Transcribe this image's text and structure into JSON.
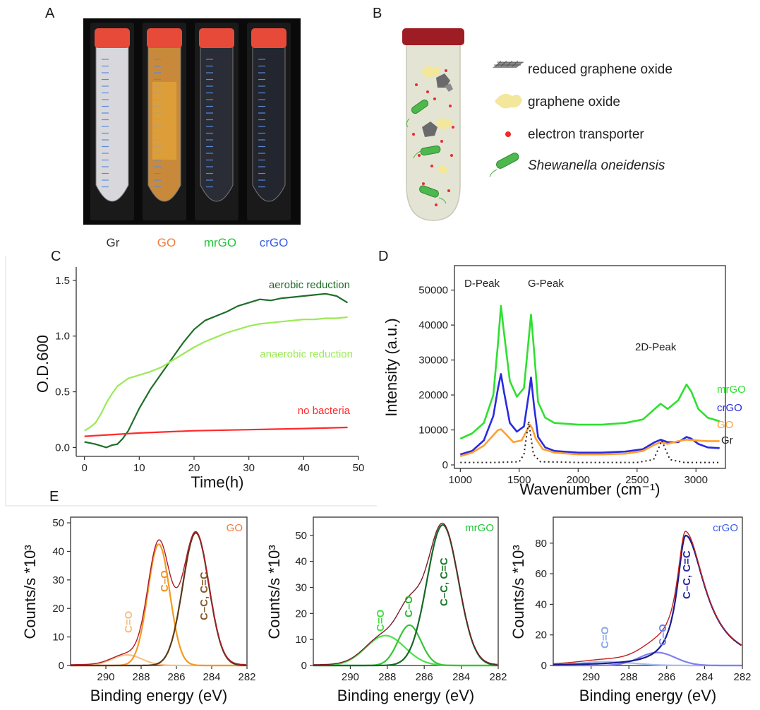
{
  "panels": {
    "A": {
      "label": "A",
      "tubes": [
        {
          "label": "Gr",
          "color": "#333333",
          "liquid": "#d8d8dc"
        },
        {
          "label": "GO",
          "color": "#f07b3c",
          "liquid": "#c88a3a"
        },
        {
          "label": "mrGO",
          "color": "#22c33a",
          "liquid": "#2a2d36"
        },
        {
          "label": "crGO",
          "color": "#3b5fe0",
          "liquid": "#23262e"
        }
      ]
    },
    "B": {
      "label": "B",
      "legend": [
        {
          "icon": "reduced-graphene-oxide-icon",
          "text": "reduced graphene oxide"
        },
        {
          "icon": "graphene-oxide-icon",
          "text": "graphene oxide"
        },
        {
          "icon": "electron-transporter-icon",
          "text": "electron transporter"
        },
        {
          "icon": "shewanella-icon",
          "text": "Shewanella oneidensis"
        }
      ]
    },
    "C": {
      "label": "C"
    },
    "D": {
      "label": "D"
    },
    "E": {
      "label": "E"
    }
  },
  "chart_data": [
    {
      "id": "C",
      "type": "line",
      "xlabel": "Time(h)",
      "ylabel": "O.D.600",
      "xlim": [
        0,
        50
      ],
      "ylim": [
        0,
        1.5
      ],
      "xticks": [
        0,
        10,
        20,
        30,
        40,
        50
      ],
      "yticks": [
        0.0,
        0.5,
        1.0,
        1.5
      ],
      "ytick_labels": [
        "0.0",
        "0.5",
        "1.0",
        "1.5"
      ],
      "series": [
        {
          "name": "aerobic reduction",
          "color": "#1f6e2a",
          "x": [
            0,
            2,
            4,
            5,
            6,
            7,
            8,
            10,
            12,
            14,
            16,
            18,
            20,
            22,
            24,
            26,
            28,
            30,
            32,
            34,
            36,
            38,
            40,
            42,
            44,
            46,
            48
          ],
          "y": [
            0.05,
            0.03,
            0.0,
            0.02,
            0.03,
            0.08,
            0.15,
            0.35,
            0.52,
            0.66,
            0.8,
            0.94,
            1.06,
            1.14,
            1.18,
            1.22,
            1.27,
            1.3,
            1.33,
            1.32,
            1.34,
            1.35,
            1.36,
            1.37,
            1.38,
            1.36,
            1.3
          ]
        },
        {
          "name": "anaerobic reduction",
          "color": "#9bea57",
          "x": [
            0,
            1,
            2,
            3,
            4,
            5,
            6,
            8,
            10,
            12,
            14,
            16,
            18,
            20,
            22,
            24,
            26,
            28,
            30,
            32,
            34,
            36,
            38,
            40,
            42,
            44,
            46,
            48
          ],
          "y": [
            0.15,
            0.18,
            0.22,
            0.3,
            0.4,
            0.48,
            0.55,
            0.62,
            0.65,
            0.68,
            0.72,
            0.78,
            0.84,
            0.9,
            0.95,
            0.99,
            1.03,
            1.06,
            1.09,
            1.11,
            1.12,
            1.13,
            1.14,
            1.15,
            1.15,
            1.16,
            1.16,
            1.17
          ]
        },
        {
          "name": "no bacteria",
          "color": "#ff2a2a",
          "x": [
            0,
            10,
            20,
            30,
            40,
            48
          ],
          "y": [
            0.1,
            0.13,
            0.15,
            0.16,
            0.17,
            0.18
          ]
        }
      ]
    },
    {
      "id": "D",
      "type": "line",
      "xlabel": "Wavenumber (cm⁻¹)",
      "ylabel": "Intensity (a.u.)",
      "xlim": [
        950,
        3250
      ],
      "ylim": [
        -1000,
        57000
      ],
      "xticks": [
        1000,
        1500,
        2000,
        2500,
        3000
      ],
      "yticks": [
        0,
        10000,
        20000,
        30000,
        40000,
        50000
      ],
      "annotations": [
        "D-Peak",
        "G-Peak",
        "2D-Peak"
      ],
      "series": [
        {
          "name": "mrGO",
          "color": "#2fe02f",
          "x": [
            1000,
            1100,
            1200,
            1280,
            1320,
            1345,
            1370,
            1420,
            1480,
            1540,
            1580,
            1600,
            1625,
            1660,
            1720,
            1800,
            2000,
            2200,
            2400,
            2550,
            2650,
            2700,
            2760,
            2850,
            2920,
            2960,
            3020,
            3100,
            3200
          ],
          "y": [
            7500,
            9000,
            12000,
            20000,
            35000,
            45500,
            38000,
            24000,
            19500,
            22000,
            36000,
            43000,
            33000,
            18000,
            13500,
            12000,
            11500,
            11500,
            12000,
            13000,
            16000,
            17500,
            16000,
            18500,
            23000,
            21000,
            16000,
            13500,
            12500
          ]
        },
        {
          "name": "crGO",
          "color": "#2a2adf",
          "x": [
            1000,
            1100,
            1200,
            1280,
            1320,
            1345,
            1370,
            1420,
            1480,
            1540,
            1580,
            1600,
            1625,
            1660,
            1720,
            1800,
            2000,
            2200,
            2400,
            2550,
            2650,
            2700,
            2760,
            2850,
            2920,
            2960,
            3020,
            3100,
            3200
          ],
          "y": [
            3000,
            4000,
            7000,
            14000,
            22000,
            26000,
            21000,
            12000,
            9500,
            11000,
            20000,
            25000,
            17000,
            8000,
            5000,
            4000,
            3500,
            3500,
            3800,
            4500,
            6500,
            7200,
            6500,
            6500,
            8000,
            7500,
            6000,
            5000,
            4800
          ]
        },
        {
          "name": "GO",
          "color": "#ffa030",
          "x": [
            1000,
            1100,
            1200,
            1280,
            1320,
            1345,
            1380,
            1450,
            1520,
            1560,
            1590,
            1610,
            1640,
            1700,
            1800,
            2000,
            2200,
            2400,
            2550,
            2650,
            2700,
            2760,
            2850,
            2920,
            3000,
            3100,
            3200
          ],
          "y": [
            2500,
            3500,
            5500,
            8500,
            10000,
            10200,
            9000,
            6500,
            7000,
            9500,
            11500,
            10500,
            7500,
            4500,
            3500,
            3000,
            3000,
            3200,
            4000,
            5800,
            6500,
            6000,
            6800,
            7200,
            7000,
            6800,
            6800
          ]
        },
        {
          "name": "Gr",
          "color": "#222222",
          "dashed": true,
          "x": [
            1000,
            1300,
            1500,
            1540,
            1565,
            1580,
            1595,
            1620,
            1680,
            2000,
            2500,
            2640,
            2680,
            2710,
            2740,
            2780,
            2900,
            3200
          ],
          "y": [
            700,
            700,
            900,
            3000,
            9000,
            12500,
            9000,
            3000,
            900,
            700,
            700,
            1500,
            4500,
            7000,
            4500,
            1500,
            700,
            700
          ]
        }
      ]
    },
    {
      "id": "E1",
      "type": "line",
      "xlabel": "Binding energy (eV)",
      "ylabel": "Counts/s *10³",
      "xlim": [
        292,
        282
      ],
      "ylim": [
        0,
        52
      ],
      "xticks": [
        290,
        288,
        286,
        284,
        282
      ],
      "yticks": [
        0,
        10,
        20,
        30,
        40,
        50
      ],
      "sample": "GO",
      "sample_color": "#f07b3c",
      "peak_labels": [
        {
          "text": "C=O",
          "color": "#f3c086"
        },
        {
          "text": "C–O",
          "color": "#f2941f"
        },
        {
          "text": "C–C, C=C",
          "color": "#8a5a2a"
        }
      ],
      "series": [
        {
          "name": "C=O",
          "color": "#f6c38a",
          "gauss": [
            288.8,
            3.7,
            0.85
          ]
        },
        {
          "name": "C–O",
          "color": "#f39a24",
          "gauss": [
            287.0,
            42.5,
            0.62
          ]
        },
        {
          "name": "C–C, C=C",
          "color": "#5a3a18",
          "gauss": [
            284.9,
            46.5,
            0.74
          ]
        },
        {
          "name": "envelope",
          "color": "#b01a2a",
          "sum": true
        }
      ]
    },
    {
      "id": "E2",
      "type": "line",
      "xlabel": "Binding energy (eV)",
      "ylabel": "Counts/s *10³",
      "xlim": [
        292,
        282
      ],
      "ylim": [
        0,
        57
      ],
      "xticks": [
        290,
        288,
        286,
        284,
        282
      ],
      "yticks": [
        0,
        10,
        20,
        30,
        40,
        50
      ],
      "sample": "mrGO",
      "sample_color": "#22c33a",
      "peak_labels": [
        {
          "text": "C=O",
          "color": "#3fe03f"
        },
        {
          "text": "C–O",
          "color": "#2fb82f"
        },
        {
          "text": "C–C, C=C",
          "color": "#1b7a2a"
        }
      ],
      "series": [
        {
          "name": "C=O",
          "color": "#4ee04e",
          "gauss": [
            288.1,
            11.5,
            1.05
          ]
        },
        {
          "name": "C–O",
          "color": "#36c436",
          "gauss": [
            286.8,
            15.5,
            0.62
          ]
        },
        {
          "name": "C–C, C=C",
          "color": "#156a25",
          "gauss": [
            285.0,
            54.0,
            0.85
          ]
        },
        {
          "name": "envelope",
          "color": "#7a1a2a",
          "sum": true
        }
      ]
    },
    {
      "id": "E3",
      "type": "line",
      "xlabel": "Binding energy (eV)",
      "ylabel": "Counts/s *10³",
      "xlim": [
        292,
        282
      ],
      "ylim": [
        0,
        97
      ],
      "xticks": [
        290,
        288,
        286,
        284,
        282
      ],
      "yticks": [
        0,
        20,
        40,
        60,
        80
      ],
      "sample": "crGO",
      "sample_color": "#3b5fe0",
      "peak_labels": [
        {
          "text": "C=O",
          "color": "#8aa8f0"
        },
        {
          "text": "C–O",
          "color": "#6f7ff0"
        },
        {
          "text": "C–C, C=C",
          "color": "#2a2aa0"
        }
      ],
      "series": [
        {
          "name": "C=O",
          "color": "#a6bcf5",
          "gauss": [
            289.2,
            2.5,
            1.4
          ]
        },
        {
          "name": "C–O",
          "color": "#8080f0",
          "gauss": [
            286.5,
            8.5,
            0.95
          ]
        },
        {
          "name": "C–C, C=C",
          "color": "#1a1a8a",
          "lorentz": [
            285.0,
            85.0,
            0.55
          ]
        },
        {
          "name": "envelope",
          "color": "#c02020",
          "sum": true
        }
      ]
    }
  ]
}
